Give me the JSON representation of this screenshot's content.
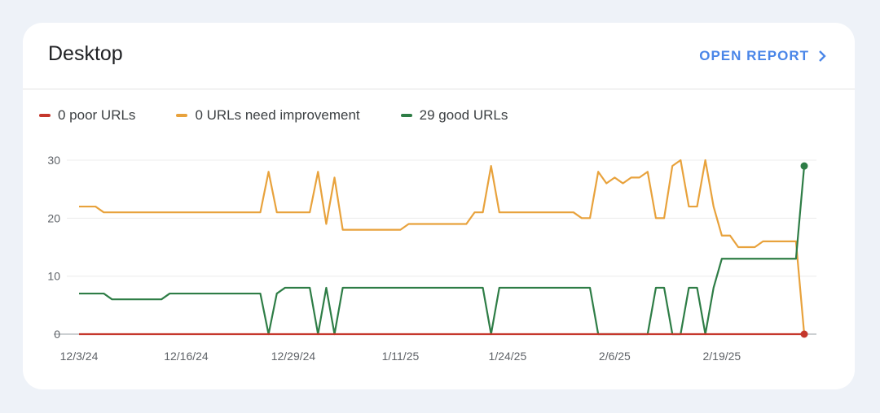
{
  "card": {
    "title": "Desktop",
    "open_report_label": "OPEN REPORT",
    "open_report_icon": "chevron-right-icon"
  },
  "legend": [
    {
      "label": "0 poor URLs",
      "color": "#c5372c"
    },
    {
      "label": "0 URLs need improvement",
      "color": "#e8a23c"
    },
    {
      "label": "29 good URLs",
      "color": "#2e7d46"
    }
  ],
  "chart_data": {
    "type": "line",
    "title": "",
    "xlabel": "",
    "ylabel": "",
    "ylim": [
      0,
      30
    ],
    "yticks": [
      "0",
      "10",
      "20",
      "30"
    ],
    "xticks": [
      "12/3/24",
      "12/16/24",
      "12/29/24",
      "1/11/25",
      "1/24/25",
      "2/6/25",
      "2/19/25"
    ],
    "grid": true,
    "legend_position": "top-left",
    "x": [
      "12/3/24",
      "12/4/24",
      "12/5/24",
      "12/6/24",
      "12/7/24",
      "12/8/24",
      "12/9/24",
      "12/10/24",
      "12/11/24",
      "12/12/24",
      "12/13/24",
      "12/14/24",
      "12/15/24",
      "12/16/24",
      "12/17/24",
      "12/18/24",
      "12/19/24",
      "12/20/24",
      "12/21/24",
      "12/22/24",
      "12/23/24",
      "12/24/24",
      "12/25/24",
      "12/26/24",
      "12/27/24",
      "12/28/24",
      "12/29/24",
      "12/30/24",
      "12/31/24",
      "1/1/25",
      "1/2/25",
      "1/3/25",
      "1/4/25",
      "1/5/25",
      "1/6/25",
      "1/7/25",
      "1/8/25",
      "1/9/25",
      "1/10/25",
      "1/11/25",
      "1/12/25",
      "1/13/25",
      "1/14/25",
      "1/15/25",
      "1/16/25",
      "1/17/25",
      "1/18/25",
      "1/19/25",
      "1/20/25",
      "1/21/25",
      "1/22/25",
      "1/23/25",
      "1/24/25",
      "1/25/25",
      "1/26/25",
      "1/27/25",
      "1/28/25",
      "1/29/25",
      "1/30/25",
      "1/31/25",
      "2/1/25",
      "2/2/25",
      "2/3/25",
      "2/4/25",
      "2/5/25",
      "2/6/25",
      "2/7/25",
      "2/8/25",
      "2/9/25",
      "2/10/25",
      "2/11/25",
      "2/12/25",
      "2/13/25",
      "2/14/25",
      "2/15/25",
      "2/16/25",
      "2/17/25",
      "2/18/25",
      "2/19/25",
      "2/20/25",
      "2/21/25",
      "2/22/25",
      "2/23/25",
      "2/24/25",
      "2/25/25",
      "2/26/25",
      "2/27/25",
      "2/28/25",
      "3/1/25"
    ],
    "series": [
      {
        "name": "poor URLs",
        "color": "#c5372c",
        "values": [
          0,
          0,
          0,
          0,
          0,
          0,
          0,
          0,
          0,
          0,
          0,
          0,
          0,
          0,
          0,
          0,
          0,
          0,
          0,
          0,
          0,
          0,
          0,
          0,
          0,
          0,
          0,
          0,
          0,
          0,
          0,
          0,
          0,
          0,
          0,
          0,
          0,
          0,
          0,
          0,
          0,
          0,
          0,
          0,
          0,
          0,
          0,
          0,
          0,
          0,
          0,
          0,
          0,
          0,
          0,
          0,
          0,
          0,
          0,
          0,
          0,
          0,
          0,
          0,
          0,
          0,
          0,
          0,
          0,
          0,
          0,
          0,
          0,
          0,
          0,
          0,
          0,
          0,
          0,
          0,
          0,
          0,
          0,
          0,
          0,
          0,
          0,
          0,
          0
        ]
      },
      {
        "name": "URLs need improvement",
        "color": "#e8a23c",
        "values": [
          22,
          22,
          22,
          21,
          21,
          21,
          21,
          21,
          21,
          21,
          21,
          21,
          21,
          21,
          21,
          21,
          21,
          21,
          21,
          21,
          21,
          21,
          21,
          28,
          21,
          21,
          21,
          21,
          21,
          28,
          19,
          27,
          18,
          18,
          18,
          18,
          18,
          18,
          18,
          18,
          19,
          19,
          19,
          19,
          19,
          19,
          19,
          19,
          21,
          21,
          29,
          21,
          21,
          21,
          21,
          21,
          21,
          21,
          21,
          21,
          21,
          20,
          20,
          28,
          26,
          27,
          26,
          27,
          27,
          28,
          20,
          20,
          29,
          30,
          22,
          22,
          30,
          22,
          17,
          17,
          15,
          15,
          15,
          16,
          16,
          16,
          16,
          16,
          0
        ]
      },
      {
        "name": "good URLs",
        "color": "#2e7d46",
        "values": [
          7,
          7,
          7,
          7,
          6,
          6,
          6,
          6,
          6,
          6,
          6,
          7,
          7,
          7,
          7,
          7,
          7,
          7,
          7,
          7,
          7,
          7,
          7,
          0,
          7,
          8,
          8,
          8,
          8,
          0,
          8,
          0,
          8,
          8,
          8,
          8,
          8,
          8,
          8,
          8,
          8,
          8,
          8,
          8,
          8,
          8,
          8,
          8,
          8,
          8,
          0,
          8,
          8,
          8,
          8,
          8,
          8,
          8,
          8,
          8,
          8,
          8,
          8,
          0,
          0,
          0,
          0,
          0,
          0,
          0,
          8,
          8,
          0,
          0,
          8,
          8,
          0,
          8,
          13,
          13,
          13,
          13,
          13,
          13,
          13,
          13,
          13,
          13,
          29
        ]
      }
    ]
  }
}
